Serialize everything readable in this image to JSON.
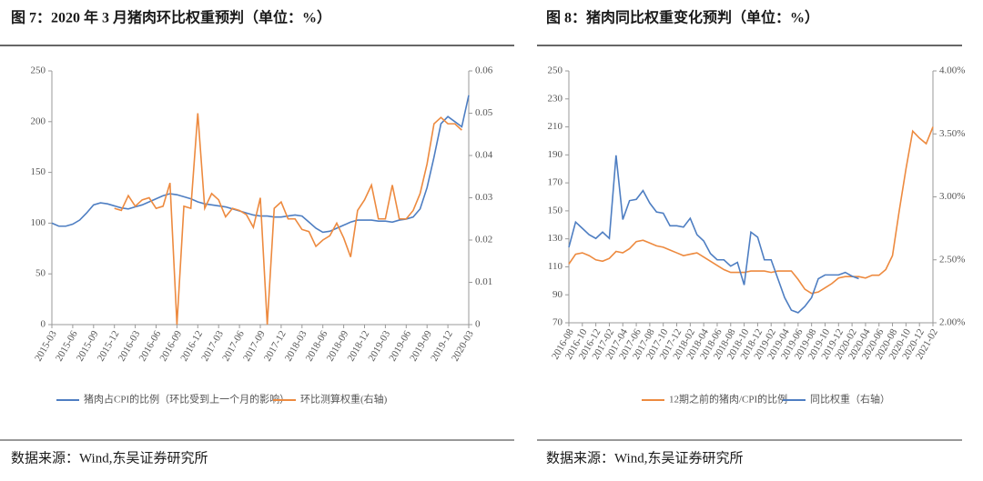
{
  "chart_data": [
    {
      "type": "line",
      "title": "图 7：2020 年 3 月猪肉环比权重预判（单位：%）",
      "source": "数据来源：Wind,东吴证券研究所",
      "categories": [
        "2015-03",
        null,
        null,
        "2015-06",
        null,
        null,
        "2015-09",
        null,
        null,
        "2015-12",
        null,
        null,
        "2016-03",
        null,
        null,
        "2016-06",
        null,
        null,
        "2016-09",
        null,
        null,
        "2016-12",
        null,
        null,
        "2017-03",
        null,
        null,
        "2017-06",
        null,
        null,
        "2017-09",
        null,
        null,
        "2017-12",
        null,
        null,
        "2018-03",
        null,
        null,
        "2018-06",
        null,
        null,
        "2018-09",
        null,
        null,
        "2018-12",
        null,
        null,
        "2019-03",
        null,
        null,
        "2019-06",
        null,
        null,
        "2019-09",
        null,
        null,
        "2019-12",
        null,
        null,
        "2020-03"
      ],
      "ylim": [
        0,
        250
      ],
      "yticks": [
        0,
        50,
        100,
        150,
        200,
        250
      ],
      "y2lim": [
        0,
        0.06
      ],
      "y2ticks": [
        0,
        0.01,
        0.02,
        0.03,
        0.04,
        0.05,
        0.06
      ],
      "series": [
        {
          "name": "猪肉占CPI的比例（环比受到上一个月的影响）",
          "color": "#4e7ec2",
          "values": [
            100,
            97,
            97,
            99,
            103,
            110,
            118,
            120,
            119,
            117,
            115,
            114,
            116,
            118,
            121,
            124,
            127,
            129,
            128,
            126,
            124,
            121,
            119,
            118,
            117,
            116,
            114,
            112,
            110,
            108,
            107,
            107,
            106,
            106,
            107,
            108,
            107,
            101,
            95,
            91,
            92,
            95,
            98,
            101,
            103,
            103,
            103,
            102,
            102,
            101,
            103,
            104,
            106,
            114,
            135,
            165,
            198,
            205,
            200,
            195,
            226
          ]
        },
        {
          "name": "环比测算权重(右轴)",
          "color": "#ed8a3f",
          "axis": "y2",
          "values": [
            null,
            null,
            null,
            null,
            null,
            null,
            null,
            null,
            null,
            0.0275,
            0.027,
            0.0305,
            0.028,
            0.0295,
            0.03,
            0.0275,
            0.028,
            0.0335,
            0,
            0.028,
            0.0275,
            0.05,
            0.0275,
            0.031,
            0.0295,
            0.0255,
            0.0275,
            0.027,
            0.026,
            0.023,
            0.03,
            0,
            0.0275,
            0.029,
            0.025,
            0.025,
            0.0225,
            0.022,
            0.0185,
            0.02,
            0.021,
            0.024,
            0.0205,
            0.016,
            0.027,
            0.0295,
            0.033,
            0.025,
            0.025,
            0.033,
            0.025,
            0.025,
            0.027,
            0.031,
            0.038,
            0.0475,
            0.049,
            0.0475,
            0.0475,
            0.046,
            null
          ]
        }
      ]
    },
    {
      "type": "line",
      "title": "图 8：猪肉同比权重变化预判（单位：%）",
      "source": "数据来源：Wind,东吴证券研究所",
      "categories": [
        "2016-08",
        null,
        "2016-10",
        null,
        "2016-12",
        null,
        "2017-02",
        null,
        "2017-04",
        null,
        "2017-06",
        null,
        "2017-08",
        null,
        "2017-10",
        null,
        "2017-12",
        null,
        "2018-02",
        null,
        "2018-04",
        null,
        "2018-06",
        null,
        "2018-08",
        null,
        "2018-10",
        null,
        "2018-12",
        null,
        "2019-02",
        null,
        "2019-04",
        null,
        "2019-06",
        null,
        "2019-08",
        null,
        "2019-10",
        null,
        "2019-12",
        null,
        "2020-02",
        null,
        "2020-04",
        null,
        "2020-06",
        null,
        "2020-08",
        null,
        "2020-10",
        null,
        "2020-12",
        null,
        "2021-02"
      ],
      "ylim": [
        70,
        250
      ],
      "yticks": [
        70,
        90,
        110,
        130,
        150,
        170,
        190,
        210,
        230,
        250
      ],
      "y2lim": [
        2,
        4
      ],
      "y2ticks": [
        {
          "value": 2,
          "label": "2.00%"
        },
        {
          "value": 2.5,
          "label": "2.50%"
        },
        {
          "value": 3,
          "label": "3.00%"
        },
        {
          "value": 3.5,
          "label": "3.50%"
        },
        {
          "value": 4,
          "label": "4.00%"
        }
      ],
      "series": [
        {
          "name": "12期之前的猪肉/CPI的比例",
          "color": "#ed8a3f",
          "values": [
            112,
            119,
            120,
            118,
            115,
            114,
            116,
            121,
            120,
            123,
            128,
            129,
            127,
            125,
            124,
            122,
            120,
            118,
            119,
            120,
            117,
            114,
            111,
            108,
            106,
            106,
            106,
            107,
            107,
            107,
            106,
            107,
            107,
            107,
            101,
            94,
            91,
            92,
            95,
            98,
            102,
            103,
            103,
            103,
            102,
            104,
            104,
            108,
            118,
            150,
            180,
            207,
            202,
            198,
            210
          ]
        },
        {
          "name": "同比权重（右轴）",
          "color": "#4e7ec2",
          "axis": "y2",
          "values": [
            2.6,
            2.8,
            2.75,
            2.7,
            2.67,
            2.72,
            2.67,
            3.33,
            2.82,
            2.97,
            2.98,
            3.05,
            2.95,
            2.88,
            2.87,
            2.77,
            2.77,
            2.76,
            2.83,
            2.7,
            2.65,
            2.55,
            2.5,
            2.5,
            2.45,
            2.48,
            2.3,
            2.72,
            2.68,
            2.5,
            2.5,
            2.35,
            2.2,
            2.1,
            2.08,
            2.13,
            2.2,
            2.35,
            2.38,
            2.38,
            2.38,
            2.4,
            2.37,
            2.35,
            null,
            null,
            null,
            null,
            null,
            null,
            null,
            null,
            null,
            null,
            null
          ]
        }
      ]
    }
  ]
}
